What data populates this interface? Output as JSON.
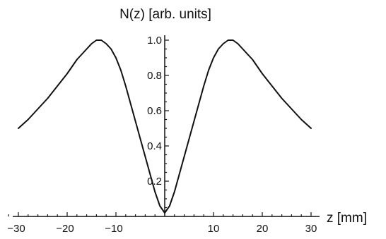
{
  "chart_data": {
    "type": "line",
    "title": "",
    "xlabel": "z [mm]",
    "ylabel": "N(z) [arb. units]",
    "xlim": [
      -32,
      31
    ],
    "ylim": [
      0,
      1.04
    ],
    "x_ticks": [
      -30,
      -20,
      -10,
      10,
      20,
      30
    ],
    "x_tick_labels": [
      "−30",
      "−20",
      "−10",
      "10",
      "20",
      "30"
    ],
    "y_ticks": [
      0.2,
      0.4,
      0.6,
      0.8,
      1.0
    ],
    "y_tick_labels": [
      "0.2",
      "0.4",
      "0.6",
      "0.8",
      "1.0"
    ],
    "grid": false,
    "legend": "none",
    "line_color": "#111111",
    "series": [
      {
        "x": [
          -30,
          -28,
          -26,
          -24,
          -22,
          -20,
          -18,
          -16,
          -15,
          -14,
          -13,
          -12,
          -11,
          -10,
          -9,
          -8,
          -7,
          -6,
          -5,
          -4,
          -3,
          -2,
          -1,
          0,
          1,
          2,
          3,
          4,
          5,
          6,
          7,
          8,
          9,
          10,
          11,
          12,
          13,
          14,
          15,
          16,
          18,
          20,
          22,
          24,
          26,
          28,
          30
        ],
        "y": [
          0.5,
          0.55,
          0.61,
          0.67,
          0.74,
          0.81,
          0.89,
          0.95,
          0.98,
          1.0,
          1.0,
          0.98,
          0.95,
          0.9,
          0.83,
          0.74,
          0.64,
          0.54,
          0.44,
          0.34,
          0.24,
          0.14,
          0.06,
          0.02,
          0.06,
          0.14,
          0.24,
          0.34,
          0.44,
          0.54,
          0.64,
          0.74,
          0.83,
          0.9,
          0.95,
          0.98,
          1.0,
          1.0,
          0.98,
          0.95,
          0.89,
          0.81,
          0.74,
          0.67,
          0.61,
          0.55,
          0.5
        ]
      }
    ]
  }
}
